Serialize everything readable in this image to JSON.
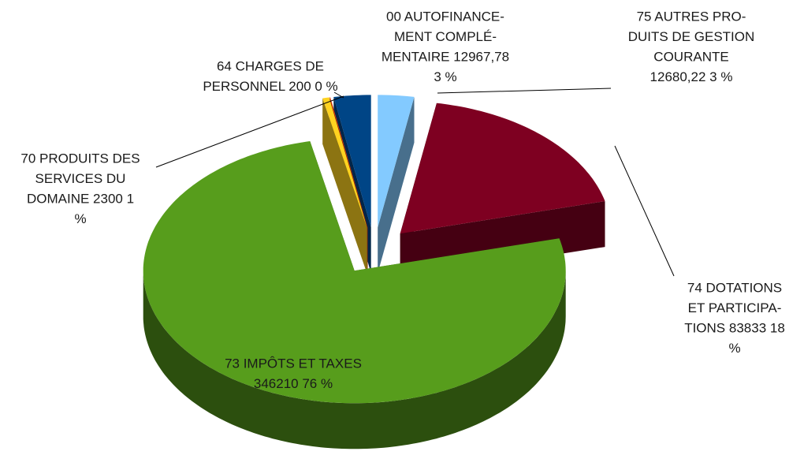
{
  "chart_data": {
    "type": "pie",
    "labels": [
      [
        "75 AUTRES PRO-",
        "DUITS DE GESTION",
        "COURANTE",
        "12680,22 3 %"
      ],
      [
        "74 DOTATIONS",
        "ET PARTICIPA-",
        "TIONS 83833 18",
        "%"
      ],
      [
        "73 IMPÔTS ET TAXES",
        "346210 76 %"
      ],
      [
        "70 PRODUITS DES",
        "SERVICES DU",
        "DOMAINE 2300 1",
        "%"
      ],
      [
        "64 CHARGES DE",
        "PERSONNEL 200 0 %"
      ],
      [
        "00 AUTOFINANCE-",
        "MENT COMPLÉ-",
        "MENTAIRE 12967,78",
        "3 %"
      ]
    ],
    "values": [
      12680.22,
      83833,
      346210,
      2300,
      200,
      12967.78
    ],
    "colors": [
      "#83caff",
      "#7e0021",
      "#579d1c",
      "#ffd320",
      "#ff420e",
      "#004586"
    ]
  }
}
